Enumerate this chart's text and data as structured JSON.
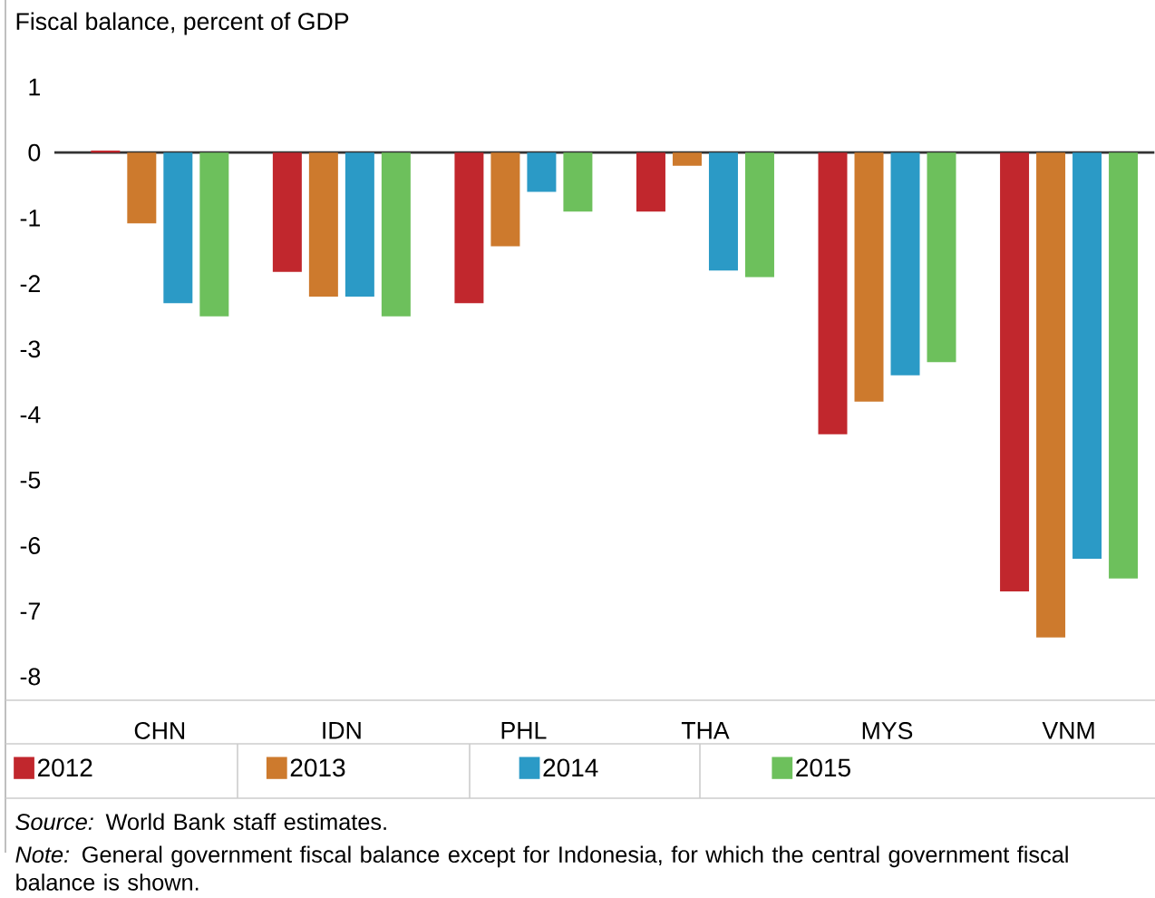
{
  "chart_data": {
    "type": "bar",
    "title": "Fiscal balance, percent of GDP",
    "categories": [
      "CHN",
      "IDN",
      "PHL",
      "THA",
      "MYS",
      "VNM"
    ],
    "series": [
      {
        "name": "2012",
        "color": "#c1272d",
        "values": [
          0.03,
          -1.82,
          -2.3,
          -0.9,
          -4.3,
          -6.7
        ]
      },
      {
        "name": "2013",
        "color": "#cd7a2d",
        "values": [
          -1.08,
          -2.2,
          -1.43,
          -0.2,
          -3.8,
          -7.4
        ]
      },
      {
        "name": "2014",
        "color": "#2b9ac6",
        "values": [
          -2.3,
          -2.2,
          -0.6,
          -1.8,
          -3.4,
          -6.2
        ]
      },
      {
        "name": "2015",
        "color": "#6dc05c",
        "values": [
          -2.5,
          -2.5,
          -0.9,
          -1.9,
          -3.2,
          -6.5
        ]
      }
    ],
    "ylim": [
      -8,
      1
    ],
    "yticks": [
      -8,
      -7,
      -6,
      -5,
      -4,
      -3,
      -2,
      -1,
      0,
      1
    ],
    "legend": "bottom",
    "annotations": [
      "*Source:* World Bank staff estimates.",
      "*Note:* General government fiscal balance except for Indonesia, for which the central government fiscal balance is shown."
    ]
  }
}
